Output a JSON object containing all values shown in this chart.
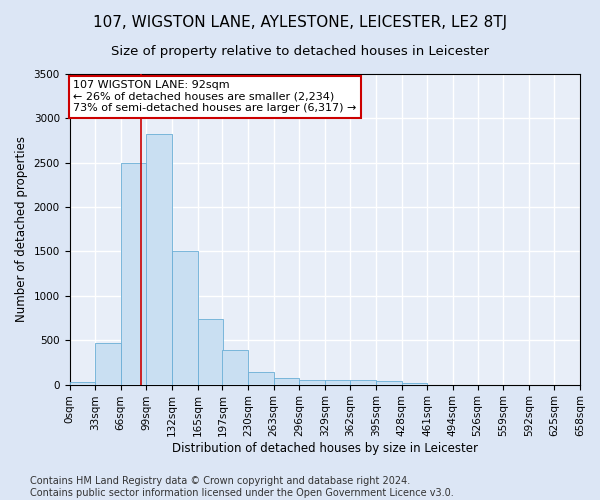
{
  "title": "107, WIGSTON LANE, AYLESTONE, LEICESTER, LE2 8TJ",
  "subtitle": "Size of property relative to detached houses in Leicester",
  "xlabel": "Distribution of detached houses by size in Leicester",
  "ylabel": "Number of detached properties",
  "bar_color": "#c9dff2",
  "bar_edge_color": "#6aaed6",
  "background_color": "#e8eef8",
  "fig_background_color": "#dce6f5",
  "grid_color": "#ffffff",
  "bin_edges": [
    0,
    33,
    66,
    99,
    132,
    165,
    197,
    230,
    263,
    296,
    329,
    362,
    395,
    428,
    461,
    494,
    526,
    559,
    592,
    625,
    658
  ],
  "bin_labels": [
    "0sqm",
    "33sqm",
    "66sqm",
    "99sqm",
    "132sqm",
    "165sqm",
    "197sqm",
    "230sqm",
    "263sqm",
    "296sqm",
    "329sqm",
    "362sqm",
    "395sqm",
    "428sqm",
    "461sqm",
    "494sqm",
    "526sqm",
    "559sqm",
    "592sqm",
    "625sqm",
    "658sqm"
  ],
  "bar_heights": [
    25,
    470,
    2500,
    2820,
    1510,
    740,
    390,
    140,
    75,
    55,
    55,
    55,
    35,
    20,
    0,
    0,
    0,
    0,
    0,
    0
  ],
  "property_size": 92,
  "red_line_x": 92,
  "annotation_text": "107 WIGSTON LANE: 92sqm\n← 26% of detached houses are smaller (2,234)\n73% of semi-detached houses are larger (6,317) →",
  "annotation_box_color": "#ffffff",
  "annotation_border_color": "#cc0000",
  "ylim": [
    0,
    3500
  ],
  "yticks": [
    0,
    500,
    1000,
    1500,
    2000,
    2500,
    3000,
    3500
  ],
  "xlim": [
    0,
    658
  ],
  "footer_line1": "Contains HM Land Registry data © Crown copyright and database right 2024.",
  "footer_line2": "Contains public sector information licensed under the Open Government Licence v3.0.",
  "title_fontsize": 11,
  "subtitle_fontsize": 9.5,
  "axis_label_fontsize": 8.5,
  "tick_fontsize": 7.5,
  "annotation_fontsize": 8,
  "footer_fontsize": 7
}
